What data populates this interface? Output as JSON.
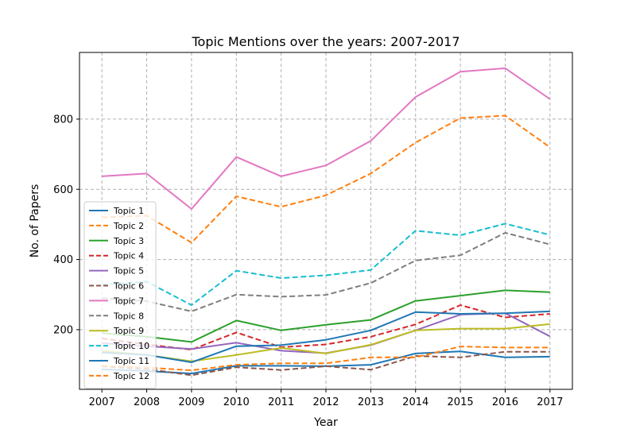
{
  "chart_data": {
    "type": "line",
    "title": "Topic Mentions over the years: 2007-2017",
    "xlabel": "Year",
    "ylabel": "No. of Papers",
    "x": [
      2007,
      2008,
      2009,
      2010,
      2011,
      2012,
      2013,
      2014,
      2015,
      2016,
      2017
    ],
    "xlim": [
      2006.5,
      2017.5
    ],
    "ylim": [
      30,
      990
    ],
    "yticks": [
      200,
      400,
      600,
      800
    ],
    "grid": true,
    "legend_position": "center-left",
    "series": [
      {
        "name": "Topic 1",
        "color": "#1f77b4",
        "dash": false,
        "values": [
          87,
          82,
          75,
          97,
          97,
          96,
          100,
          132,
          138,
          121,
          123
        ]
      },
      {
        "name": "Topic 2",
        "color": "#ff7f0e",
        "dash": true,
        "values": [
          520,
          525,
          448,
          580,
          550,
          583,
          645,
          733,
          803,
          810,
          720
        ]
      },
      {
        "name": "Topic 3",
        "color": "#2ca02c",
        "dash": false,
        "values": [
          190,
          180,
          165,
          226,
          198,
          214,
          228,
          282,
          297,
          312,
          307
        ]
      },
      {
        "name": "Topic 4",
        "color": "#d62728",
        "dash": true,
        "values": [
          175,
          158,
          143,
          192,
          150,
          158,
          180,
          215,
          270,
          235,
          245
        ]
      },
      {
        "name": "Topic 5",
        "color": "#9467bd",
        "dash": false,
        "values": [
          162,
          153,
          145,
          163,
          140,
          133,
          156,
          198,
          243,
          247,
          181
        ]
      },
      {
        "name": "Topic 6",
        "color": "#8c564b",
        "dash": true,
        "values": [
          95,
          88,
          70,
          93,
          85,
          96,
          86,
          125,
          121,
          137,
          137
        ]
      },
      {
        "name": "Topic 7",
        "color": "#e377c2",
        "dash": false,
        "values": [
          637,
          645,
          544,
          692,
          637,
          668,
          738,
          863,
          935,
          945,
          857
        ]
      },
      {
        "name": "Topic 8",
        "color": "#7f7f7f",
        "dash": true,
        "values": [
          290,
          281,
          252,
          300,
          294,
          299,
          333,
          397,
          412,
          476,
          443
        ]
      },
      {
        "name": "Topic 9",
        "color": "#bcbd22",
        "dash": false,
        "values": [
          140,
          128,
          110,
          128,
          148,
          132,
          157,
          198,
          203,
          203,
          216
        ]
      },
      {
        "name": "Topic 10",
        "color": "#17becf",
        "dash": true,
        "values": [
          328,
          337,
          270,
          368,
          347,
          355,
          370,
          482,
          469,
          502,
          470
        ]
      },
      {
        "name": "Topic 11",
        "color": "#1f77b4",
        "dash": false,
        "values": [
          135,
          128,
          107,
          153,
          156,
          171,
          198,
          250,
          245,
          247,
          252
        ]
      },
      {
        "name": "Topic 12",
        "color": "#ff7f0e",
        "dash": true,
        "values": [
          97,
          92,
          84,
          100,
          104,
          104,
          121,
          121,
          152,
          149,
          149
        ]
      }
    ]
  }
}
